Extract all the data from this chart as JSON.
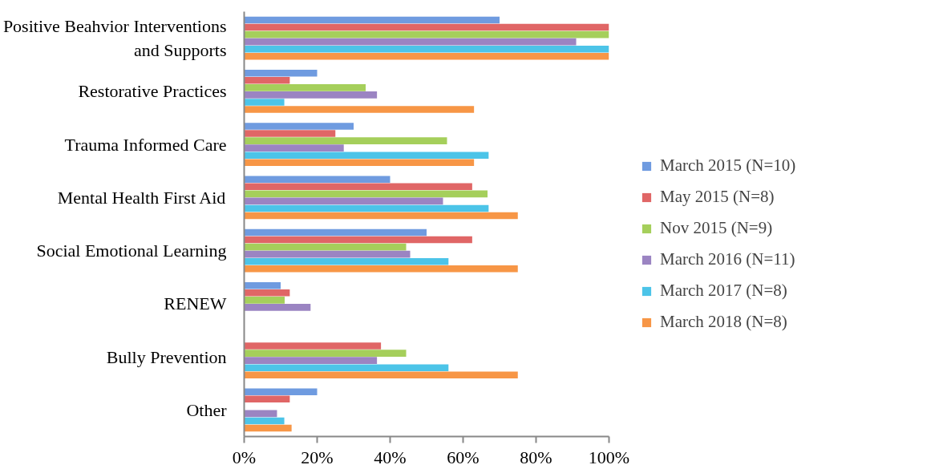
{
  "chart_data": {
    "type": "bar",
    "orientation": "horizontal",
    "categories": [
      "Positive Beahvior Interventions and Supports",
      "Restorative Practices",
      "Trauma Informed Care",
      "Mental Health First Aid",
      "Social Emotional Learning",
      "RENEW",
      "Bully Prevention",
      "Other"
    ],
    "series": [
      {
        "name": "March 2015 (N=10)",
        "color": "#6f9be0",
        "values": [
          70,
          20,
          30,
          40,
          50,
          10,
          null,
          20
        ]
      },
      {
        "name": "May 2015 (N=8)",
        "color": "#e06666",
        "values": [
          100,
          12.5,
          25,
          62.5,
          62.5,
          12.5,
          37.5,
          12.5
        ]
      },
      {
        "name": "Nov 2015 (N=9)",
        "color": "#a5cf5b",
        "values": [
          100,
          33.3,
          55.6,
          66.7,
          44.4,
          11.1,
          44.4,
          null
        ]
      },
      {
        "name": "March 2016 (N=11)",
        "color": "#9b84c2",
        "values": [
          91,
          36.4,
          27.3,
          54.5,
          45.5,
          18.2,
          36.4,
          9
        ]
      },
      {
        "name": "March 2017 (N=8)",
        "color": "#4cc4e8",
        "values": [
          100,
          11,
          67,
          67,
          56,
          null,
          56,
          11
        ]
      },
      {
        "name": "March 2018 (N=8)",
        "color": "#f79646",
        "values": [
          100,
          63,
          63,
          75,
          75,
          null,
          75,
          13
        ]
      }
    ],
    "xlim": [
      0,
      100
    ],
    "xticks": [
      {
        "value": 0,
        "label": "0%"
      },
      {
        "value": 20,
        "label": "20%"
      },
      {
        "value": 40,
        "label": "40%"
      },
      {
        "value": 60,
        "label": "60%"
      },
      {
        "value": 80,
        "label": "80%"
      },
      {
        "value": 100,
        "label": "100%"
      }
    ],
    "grid": false,
    "legend": "right"
  }
}
